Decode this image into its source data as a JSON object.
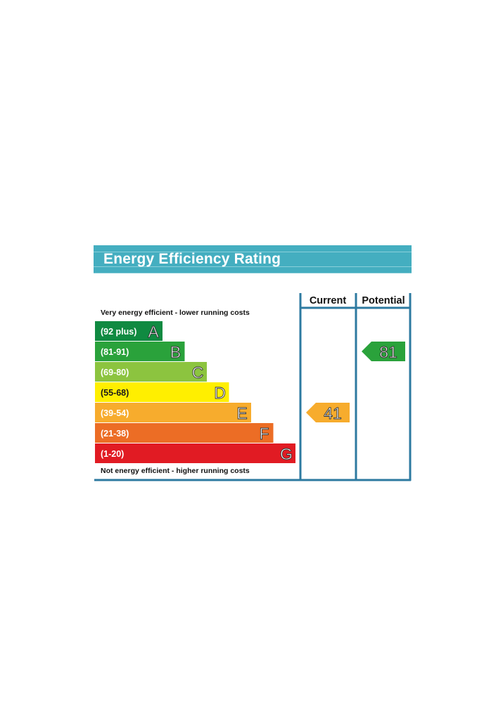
{
  "title": "Energy Efficiency Rating",
  "columns": {
    "current": "Current",
    "potential": "Potential"
  },
  "top_note": "Very energy efficient - lower running costs",
  "bottom_note": "Not energy efficient - higher running costs",
  "colors": {
    "title_band": "#44aec0",
    "frame": "#2d7aa0",
    "A": "#108a41",
    "B": "#2aa23b",
    "C": "#8cc43f",
    "D": "#ffef00",
    "E": "#f7ac2d",
    "F": "#ec6d25",
    "G": "#e11b23"
  },
  "chart_data": {
    "type": "bar",
    "title": "Energy Efficiency Rating",
    "categories": [
      "A",
      "B",
      "C",
      "D",
      "E",
      "F",
      "G"
    ],
    "ranges": [
      "(92 plus)",
      "(81-91)",
      "(69-80)",
      "(55-68)",
      "(39-54)",
      "(21-38)",
      "(1-20)"
    ],
    "current": {
      "value": 41,
      "band": "E"
    },
    "potential": {
      "value": 81,
      "band": "B"
    }
  }
}
